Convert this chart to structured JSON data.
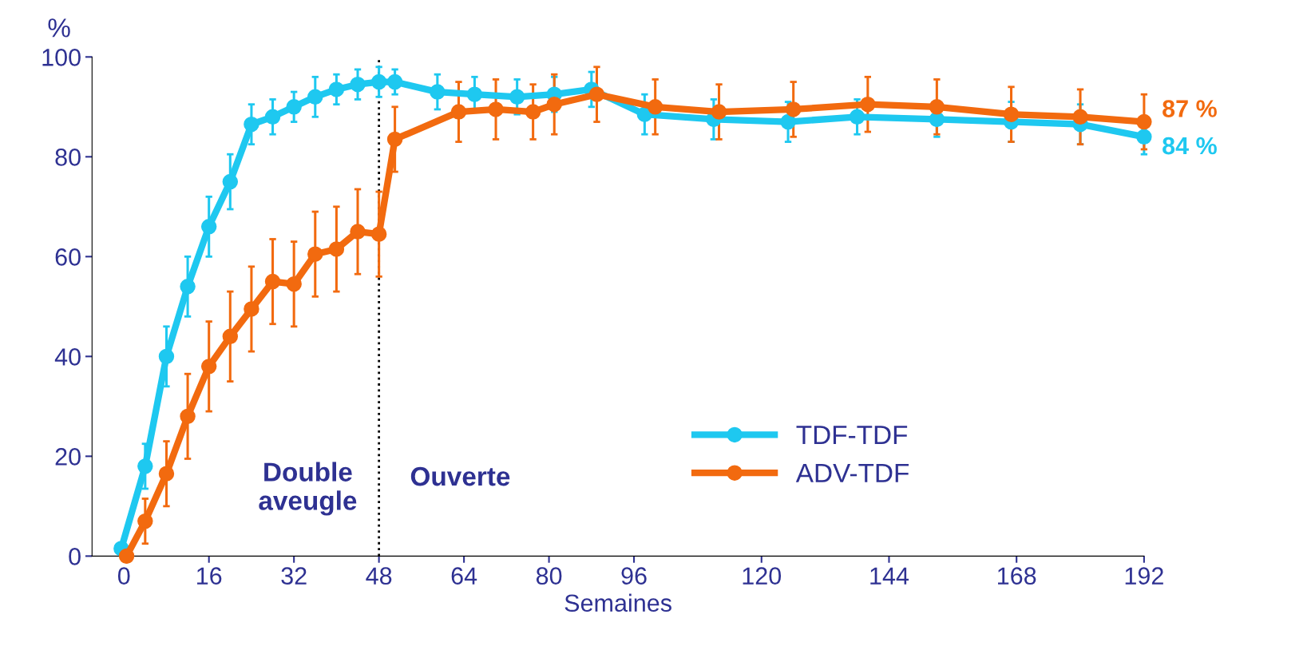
{
  "chart_data": {
    "type": "line",
    "xlabel": "Semaines",
    "ylabel": "%",
    "xlim": [
      -6,
      192
    ],
    "xticks": [
      0,
      16,
      32,
      48,
      64,
      80,
      96,
      120,
      144,
      168,
      192
    ],
    "ylim": [
      0,
      100
    ],
    "yticks": [
      0,
      20,
      40,
      60,
      80,
      100
    ],
    "marker": "circle",
    "line_style": "solid",
    "grid": false,
    "legend": "right",
    "ref_lines": [
      {
        "axis": "x",
        "value": 48,
        "color": "#000000",
        "line_style": "dotted"
      }
    ],
    "annotations": [
      "Double\naveugle",
      "Ouverte"
    ],
    "series": [
      {
        "name": "TDF-TDF",
        "color": "#1ec8f0",
        "x": [
          -0.5,
          4,
          8,
          12,
          16,
          20,
          24,
          28,
          32,
          36,
          40,
          44,
          48,
          51,
          59,
          66,
          74,
          81,
          88,
          98,
          111,
          125,
          138,
          153,
          167,
          180,
          192
        ],
        "values": [
          1.5,
          18,
          40,
          54,
          66,
          75,
          86.5,
          88,
          90,
          92,
          93.5,
          94.5,
          95,
          95,
          93,
          92.5,
          92,
          92.5,
          93.5,
          88.5,
          87.5,
          87,
          88,
          87.5,
          87,
          86.5,
          84
        ],
        "errors": [
          null,
          4.5,
          6,
          6,
          6,
          5.5,
          4,
          3.5,
          3,
          4,
          3,
          3,
          3,
          2.5,
          3.5,
          3.5,
          3.5,
          3.5,
          3.5,
          4,
          4,
          4,
          3.5,
          3.5,
          4,
          4,
          3.5
        ],
        "value_labels": [
          null,
          null,
          null,
          null,
          null,
          null,
          null,
          null,
          null,
          null,
          null,
          null,
          null,
          null,
          null,
          null,
          null,
          null,
          null,
          null,
          null,
          null,
          null,
          null,
          null,
          null,
          "84 %"
        ]
      },
      {
        "name": "ADV-TDF",
        "color": "#f26a0f",
        "x": [
          0.5,
          4,
          8,
          12,
          16,
          20,
          24,
          28,
          32,
          36,
          40,
          44,
          48,
          51,
          63,
          70,
          77,
          81,
          89,
          100,
          112,
          126,
          140,
          153,
          167,
          180,
          192
        ],
        "values": [
          0,
          7,
          16.5,
          28,
          38,
          44,
          49.5,
          55,
          54.5,
          60.5,
          61.5,
          65,
          64.5,
          83.5,
          89,
          89.5,
          89,
          90.5,
          92.5,
          90,
          89,
          89.5,
          90.5,
          90,
          88.5,
          88,
          87
        ],
        "errors": [
          null,
          4.5,
          6.5,
          8.5,
          9,
          9,
          8.5,
          8.5,
          8.5,
          8.5,
          8.5,
          8.5,
          8.5,
          6.5,
          6,
          6,
          5.5,
          6,
          5.5,
          5.5,
          5.5,
          5.5,
          5.5,
          5.5,
          5.5,
          5.5,
          5.5
        ],
        "value_labels": [
          null,
          null,
          null,
          null,
          null,
          null,
          null,
          null,
          null,
          null,
          null,
          null,
          null,
          null,
          null,
          null,
          null,
          null,
          null,
          null,
          null,
          null,
          null,
          null,
          null,
          null,
          "87 %"
        ]
      }
    ]
  }
}
